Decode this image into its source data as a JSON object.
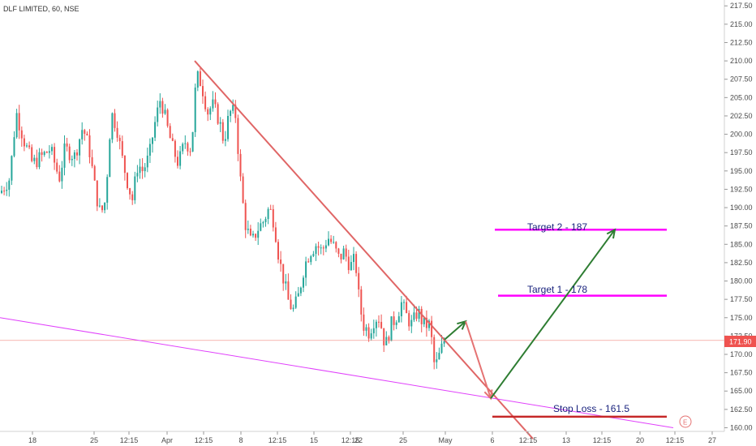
{
  "chart_data": {
    "type": "candlestick",
    "title": "DLF LIMITED, 60, NSE",
    "colors": {
      "up": "#26a69a",
      "down": "#ef5350",
      "trendline": "#e06666",
      "channel": "#e040fb",
      "target": "#ff00ff",
      "stop": "#c62828",
      "arrow_up": "#2e7d32",
      "arrow_down": "#e57373",
      "last_price_bg": "#ef5350"
    },
    "y_axis": {
      "ylim": [
        159.5,
        218.3
      ],
      "ticks": [
        160.0,
        162.5,
        165.0,
        167.5,
        170.0,
        172.5,
        175.0,
        177.5,
        180.0,
        182.5,
        185.0,
        187.5,
        190.0,
        192.5,
        195.0,
        197.5,
        200.0,
        202.5,
        205.0,
        207.5,
        210.0,
        212.5,
        215.0,
        217.5
      ],
      "tick_labels": [
        "160.00",
        "162.50",
        "165.00",
        "167.50",
        "170.00",
        "172.50",
        "175.00",
        "177.50",
        "180.00",
        "182.50",
        "185.00",
        "187.50",
        "190.00",
        "192.50",
        "195.00",
        "197.50",
        "200.00",
        "202.50",
        "205.00",
        "207.50",
        "210.00",
        "212.50",
        "215.00",
        "217.50"
      ]
    },
    "x_axis": {
      "tick_labels": [
        "18",
        "25",
        "12:15",
        "Apr",
        "12:15",
        "8",
        "12:15",
        "15",
        "12:15",
        "22",
        "25",
        "May",
        "6",
        "12:15",
        "13",
        "12:15",
        "20",
        "12:15",
        "27"
      ]
    },
    "last_price": {
      "value": 171.9,
      "label": "171.90"
    },
    "series": [
      {
        "segments": [
          [
            0,
            192
          ],
          [
            12,
            194
          ],
          [
            20,
            203
          ],
          [
            30,
            199
          ],
          [
            40,
            196
          ],
          [
            52,
            197
          ],
          [
            62,
            198
          ],
          [
            73,
            194
          ],
          [
            80,
            198
          ],
          [
            92,
            197
          ],
          [
            102,
            201
          ],
          [
            110,
            198
          ],
          [
            118,
            192
          ],
          [
            124,
            189
          ],
          [
            130,
            191
          ],
          [
            137,
            203
          ],
          [
            144,
            201
          ],
          [
            150,
            197
          ],
          [
            156,
            194
          ],
          [
            163,
            191
          ],
          [
            170,
            196
          ],
          [
            176,
            195
          ],
          [
            184,
            197
          ],
          [
            190,
            201
          ],
          [
            198,
            205
          ],
          [
            206,
            201
          ],
          [
            213,
            198
          ],
          [
            220,
            196
          ],
          [
            228,
            199
          ],
          [
            236,
            198
          ],
          [
            242,
            208
          ],
          [
            248,
            207
          ],
          [
            256,
            203
          ],
          [
            262,
            204
          ],
          [
            270,
            202
          ],
          [
            276,
            199
          ],
          [
            283,
            203
          ],
          [
            290,
            203
          ],
          [
            297,
            193
          ],
          [
            302,
            188
          ],
          [
            310,
            185
          ],
          [
            317,
            187
          ],
          [
            324,
            188
          ],
          [
            332,
            190
          ],
          [
            338,
            188
          ],
          [
            344,
            183
          ],
          [
            350,
            180
          ],
          [
            356,
            177
          ],
          [
            362,
            176
          ],
          [
            368,
            178
          ],
          [
            375,
            182
          ],
          [
            382,
            184
          ],
          [
            390,
            185
          ],
          [
            397,
            184
          ],
          [
            404,
            186
          ],
          [
            410,
            185
          ],
          [
            418,
            183
          ],
          [
            424,
            184
          ],
          [
            432,
            182
          ],
          [
            438,
            183
          ],
          [
            443,
            177
          ],
          [
            448,
            174
          ],
          [
            455,
            173
          ],
          [
            462,
            175
          ],
          [
            468,
            175
          ],
          [
            475,
            171
          ],
          [
            482,
            174
          ],
          [
            488,
            175
          ],
          [
            495,
            177
          ],
          [
            502,
            175
          ],
          [
            508,
            174
          ],
          [
            515,
            176
          ],
          [
            522,
            174
          ],
          [
            530,
            174
          ],
          [
            536,
            168
          ],
          [
            542,
            170
          ],
          [
            548,
            172
          ],
          [
            552,
            171.9
          ]
        ]
      }
    ],
    "drawings": {
      "trendline": {
        "from": [
          "Apr 12:15",
          210.0
        ],
        "to": [
          "6 12:15",
          158.5
        ]
      },
      "channel_line": {
        "from": [
          "left edge",
          175.0
        ],
        "to": [
          "27",
          160.0
        ]
      },
      "arrow_up_short": {
        "from": [
          "May",
          172.0
        ],
        "to": [
          "May+",
          174.5
        ]
      },
      "arrow_down": {
        "from": [
          "May",
          172.5
        ],
        "to": [
          "6",
          164.0
        ]
      },
      "arrow_up_long": {
        "from": [
          "6",
          164.0
        ],
        "to": [
          "13 12:15",
          187.0
        ]
      }
    },
    "annotations": [
      {
        "text": "Target 2 - 187",
        "value": 187
      },
      {
        "text": "Target 1 - 178",
        "value": 178
      },
      {
        "text": "Stop Loss - 161.5",
        "value": 161.5
      }
    ],
    "earnings_marker": "E"
  }
}
